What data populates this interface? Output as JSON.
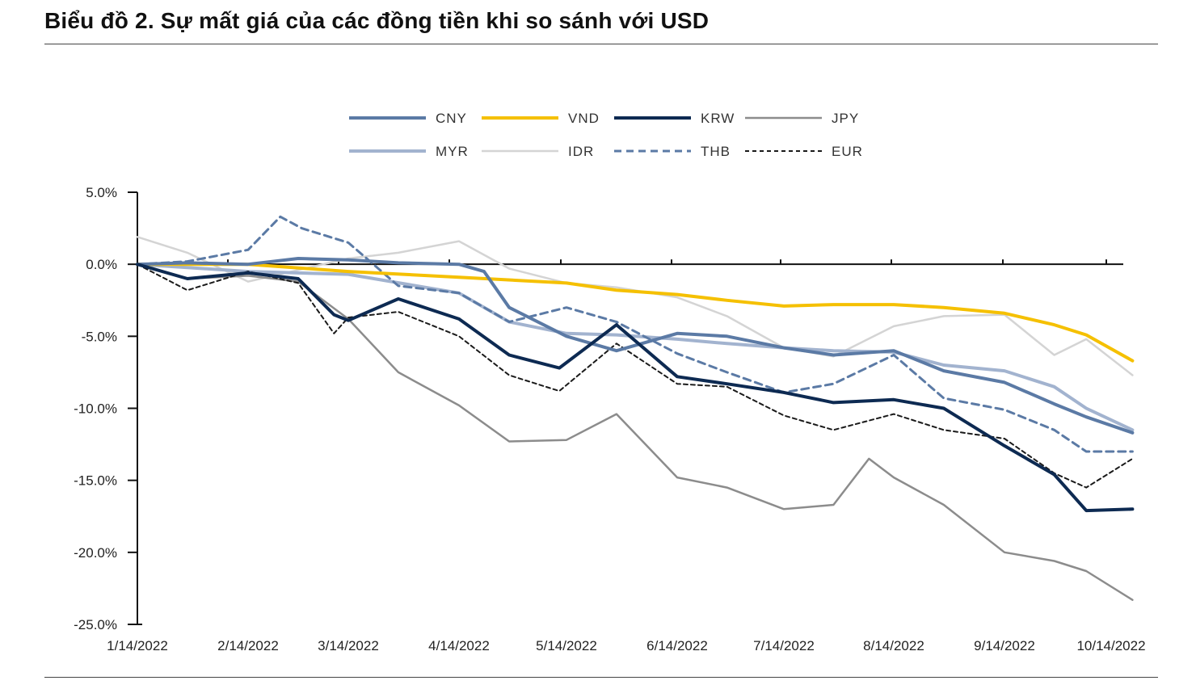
{
  "title": "Biểu đồ 2. Sự mất giá của các đồng tiền khi so sánh với USD",
  "chart_data": {
    "type": "line",
    "title": "",
    "xlabel": "",
    "ylabel": "",
    "ylim": [
      -25.0,
      5.0
    ],
    "y_ticks": [
      5.0,
      0.0,
      -5.0,
      -10.0,
      -15.0,
      -20.0,
      -25.0
    ],
    "y_tick_labels": [
      "5.0%",
      "0.0%",
      "-5.0%",
      "-10.0%",
      "-15.0%",
      "-20.0%",
      "-25.0%"
    ],
    "x_tick_labels": [
      "1/14/2022",
      "2/14/2022",
      "3/14/2022",
      "4/14/2022",
      "5/14/2022",
      "6/14/2022",
      "7/14/2022",
      "8/14/2022",
      "9/14/2022",
      "10/14/2022"
    ],
    "grid": false,
    "legend_position": "top",
    "series": [
      {
        "name": "CNY",
        "color": "#5b7aa5",
        "width": 4,
        "dash": "",
        "x": [
          "2022-01-14",
          "2022-01-28",
          "2022-02-14",
          "2022-02-28",
          "2022-03-14",
          "2022-03-28",
          "2022-04-14",
          "2022-04-21",
          "2022-04-28",
          "2022-05-14",
          "2022-05-28",
          "2022-06-14",
          "2022-06-28",
          "2022-07-14",
          "2022-07-28",
          "2022-08-14",
          "2022-08-28",
          "2022-09-14",
          "2022-09-28",
          "2022-10-07",
          "2022-10-20"
        ],
        "y": [
          0.0,
          0.1,
          0.0,
          0.4,
          0.3,
          0.1,
          0.0,
          -0.5,
          -3.0,
          -5.0,
          -6.0,
          -4.8,
          -5.0,
          -5.8,
          -6.3,
          -6.0,
          -7.4,
          -8.2,
          -9.7,
          -10.6,
          -11.7
        ]
      },
      {
        "name": "VND",
        "color": "#f5c000",
        "width": 4,
        "dash": "",
        "x": [
          "2022-01-14",
          "2022-02-14",
          "2022-03-14",
          "2022-04-14",
          "2022-05-14",
          "2022-05-28",
          "2022-06-14",
          "2022-06-28",
          "2022-07-14",
          "2022-07-28",
          "2022-08-14",
          "2022-08-28",
          "2022-09-14",
          "2022-09-28",
          "2022-10-07",
          "2022-10-20"
        ],
        "y": [
          0.0,
          0.0,
          -0.5,
          -0.9,
          -1.3,
          -1.8,
          -2.1,
          -2.5,
          -2.9,
          -2.8,
          -2.8,
          -3.0,
          -3.4,
          -4.2,
          -4.9,
          -6.7
        ]
      },
      {
        "name": "KRW",
        "color": "#0d2a52",
        "width": 4,
        "dash": "",
        "x": [
          "2022-01-14",
          "2022-01-28",
          "2022-02-14",
          "2022-02-28",
          "2022-03-10",
          "2022-03-14",
          "2022-03-28",
          "2022-04-14",
          "2022-04-28",
          "2022-05-12",
          "2022-05-28",
          "2022-06-14",
          "2022-06-28",
          "2022-07-14",
          "2022-07-28",
          "2022-08-14",
          "2022-08-28",
          "2022-09-14",
          "2022-09-28",
          "2022-10-07",
          "2022-10-20"
        ],
        "y": [
          0.0,
          -1.0,
          -0.6,
          -1.0,
          -3.5,
          -3.9,
          -2.4,
          -3.8,
          -6.3,
          -7.2,
          -4.2,
          -7.8,
          -8.3,
          -8.9,
          -9.6,
          -9.4,
          -10.0,
          -12.6,
          -14.6,
          -17.1,
          -17.0
        ]
      },
      {
        "name": "JPY",
        "color": "#8c8c8c",
        "width": 2.5,
        "dash": "",
        "x": [
          "2022-01-14",
          "2022-01-28",
          "2022-02-14",
          "2022-02-28",
          "2022-03-14",
          "2022-03-28",
          "2022-04-14",
          "2022-04-28",
          "2022-05-14",
          "2022-05-28",
          "2022-06-14",
          "2022-06-28",
          "2022-07-14",
          "2022-07-28",
          "2022-08-07",
          "2022-08-14",
          "2022-08-28",
          "2022-09-14",
          "2022-09-28",
          "2022-10-07",
          "2022-10-20"
        ],
        "y": [
          0.0,
          -1.0,
          -0.8,
          -1.2,
          -3.8,
          -7.5,
          -9.8,
          -12.3,
          -12.2,
          -10.4,
          -14.8,
          -15.5,
          -17.0,
          -16.7,
          -13.5,
          -14.8,
          -16.7,
          -20.0,
          -20.6,
          -21.3,
          -23.3
        ]
      },
      {
        "name": "MYR",
        "color": "#a2b3cf",
        "width": 4,
        "dash": "",
        "x": [
          "2022-01-14",
          "2022-02-14",
          "2022-03-14",
          "2022-04-14",
          "2022-04-28",
          "2022-05-14",
          "2022-05-28",
          "2022-06-14",
          "2022-06-28",
          "2022-07-14",
          "2022-07-28",
          "2022-08-14",
          "2022-08-28",
          "2022-09-14",
          "2022-09-28",
          "2022-10-07",
          "2022-10-20"
        ],
        "y": [
          0.0,
          -0.5,
          -0.7,
          -2.0,
          -4.0,
          -4.8,
          -4.9,
          -5.2,
          -5.5,
          -5.8,
          -6.0,
          -6.1,
          -7.0,
          -7.4,
          -8.5,
          -10.0,
          -11.5
        ]
      },
      {
        "name": "IDR",
        "color": "#d4d4d4",
        "width": 2.5,
        "dash": "",
        "x": [
          "2022-01-14",
          "2022-01-28",
          "2022-02-14",
          "2022-02-28",
          "2022-03-14",
          "2022-03-28",
          "2022-04-14",
          "2022-04-28",
          "2022-05-14",
          "2022-05-28",
          "2022-06-14",
          "2022-06-28",
          "2022-07-14",
          "2022-07-28",
          "2022-08-14",
          "2022-08-28",
          "2022-09-14",
          "2022-09-28",
          "2022-10-07",
          "2022-10-20"
        ],
        "y": [
          1.9,
          0.8,
          -1.2,
          -0.4,
          0.4,
          0.8,
          1.6,
          -0.3,
          -1.3,
          -1.6,
          -2.3,
          -3.6,
          -5.8,
          -6.4,
          -4.3,
          -3.6,
          -3.5,
          -6.3,
          -5.2,
          -7.7
        ]
      },
      {
        "name": "THB",
        "color": "#5b7aa5",
        "width": 3,
        "dash": "9,6",
        "x": [
          "2022-01-14",
          "2022-01-28",
          "2022-02-14",
          "2022-02-23",
          "2022-03-01",
          "2022-03-14",
          "2022-03-28",
          "2022-04-14",
          "2022-04-28",
          "2022-05-14",
          "2022-05-28",
          "2022-06-14",
          "2022-06-28",
          "2022-07-14",
          "2022-07-28",
          "2022-08-14",
          "2022-08-28",
          "2022-09-14",
          "2022-09-28",
          "2022-10-07",
          "2022-10-20"
        ],
        "y": [
          0.0,
          0.2,
          1.0,
          3.3,
          2.5,
          1.5,
          -1.5,
          -2.0,
          -4.0,
          -3.0,
          -4.0,
          -6.2,
          -7.5,
          -8.9,
          -8.3,
          -6.3,
          -9.3,
          -10.1,
          -11.5,
          -13.0,
          -13.0
        ]
      },
      {
        "name": "EUR",
        "color": "#1a1a1a",
        "width": 2,
        "dash": "5,4",
        "x": [
          "2022-01-14",
          "2022-01-28",
          "2022-02-14",
          "2022-02-28",
          "2022-03-10",
          "2022-03-14",
          "2022-03-28",
          "2022-04-14",
          "2022-04-28",
          "2022-05-12",
          "2022-05-28",
          "2022-06-14",
          "2022-06-28",
          "2022-07-14",
          "2022-07-28",
          "2022-08-14",
          "2022-08-28",
          "2022-09-14",
          "2022-09-28",
          "2022-10-07",
          "2022-10-20"
        ],
        "y": [
          0.0,
          -1.8,
          -0.5,
          -1.3,
          -4.8,
          -3.7,
          -3.3,
          -5.0,
          -7.7,
          -8.8,
          -5.5,
          -8.3,
          -8.5,
          -10.5,
          -11.5,
          -10.4,
          -11.5,
          -12.1,
          -14.5,
          -15.5,
          -13.5
        ]
      }
    ]
  }
}
